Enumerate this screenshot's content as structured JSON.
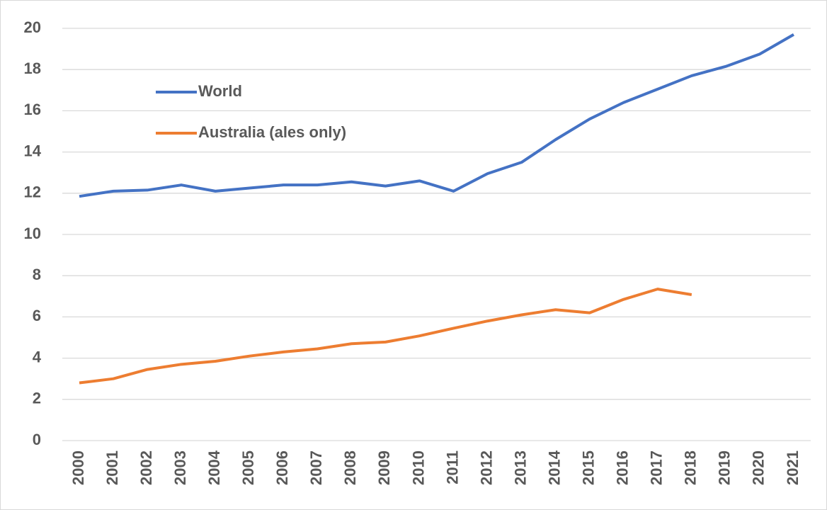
{
  "chart_data": {
    "type": "line",
    "categories": [
      "2000",
      "2001",
      "2002",
      "2003",
      "2004",
      "2005",
      "2006",
      "2007",
      "2008",
      "2009",
      "2010",
      "2011",
      "2012",
      "2013",
      "2014",
      "2015",
      "2016",
      "2017",
      "2018",
      "2019",
      "2020",
      "2021"
    ],
    "series": [
      {
        "name": "World",
        "color": "#4472c4",
        "values": [
          11.85,
          12.1,
          12.15,
          12.4,
          12.1,
          12.25,
          12.4,
          12.4,
          12.55,
          12.35,
          12.6,
          12.1,
          12.95,
          13.5,
          14.6,
          15.6,
          16.4,
          17.05,
          17.7,
          18.15,
          18.75,
          19.7
        ]
      },
      {
        "name": "Australia (ales only)",
        "color": "#ed7d31",
        "values": [
          2.8,
          3.0,
          3.45,
          3.7,
          3.85,
          4.1,
          4.3,
          4.45,
          4.7,
          4.78,
          5.08,
          5.45,
          5.8,
          6.1,
          6.35,
          6.2,
          6.85,
          7.35,
          7.08,
          null,
          null,
          null
        ]
      }
    ],
    "ylim": [
      0,
      20
    ],
    "yticks": [
      0,
      2,
      4,
      6,
      8,
      10,
      12,
      14,
      16,
      18,
      20
    ],
    "grid": true,
    "legend": "upper left"
  }
}
